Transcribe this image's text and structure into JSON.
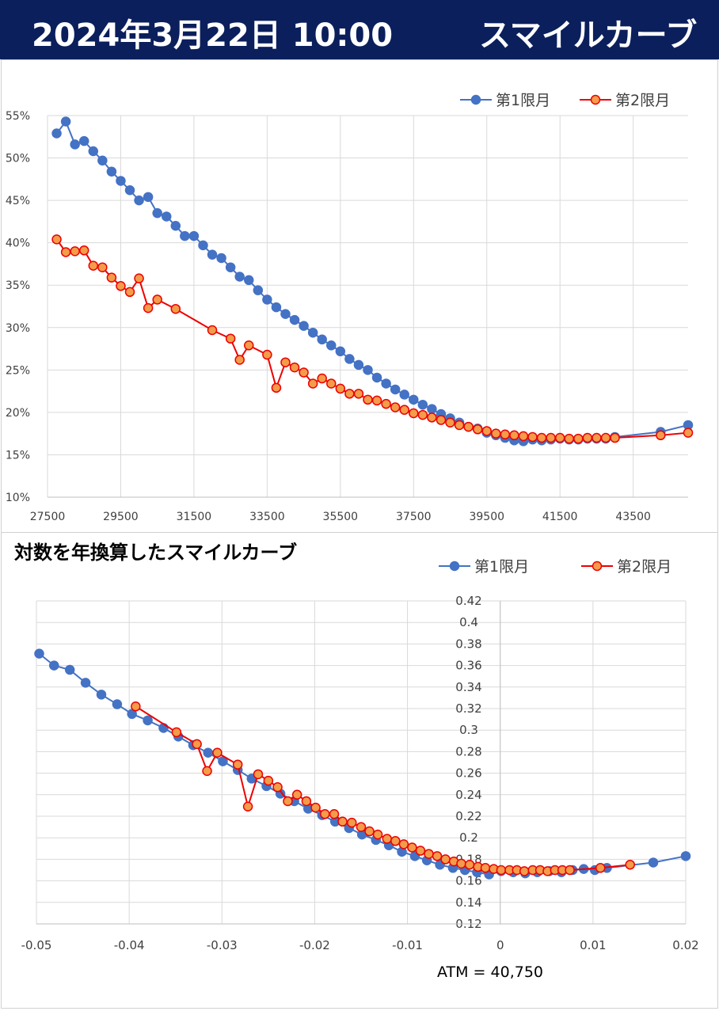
{
  "header": {
    "date": "2024年3月22日 10:00",
    "title": "スマイルカーブ"
  },
  "colors": {
    "header_bg": "#0b1f5c",
    "series1": "#4472c4",
    "series2": "#ee0000",
    "series2_fill": "#f39c4a"
  },
  "chart_data": [
    {
      "type": "line",
      "title": "",
      "xlabel": "",
      "ylabel": "",
      "xlim": [
        27500,
        45000
      ],
      "ylim": [
        10,
        55
      ],
      "x_ticks": [
        "27500",
        "29500",
        "31500",
        "33500",
        "35500",
        "37500",
        "39500",
        "41500",
        "43500"
      ],
      "y_ticks": [
        "10%",
        "15%",
        "20%",
        "25%",
        "30%",
        "35%",
        "40%",
        "45%",
        "50%",
        "55%"
      ],
      "legend": "top-right",
      "grid": true,
      "series": [
        {
          "name": "第1限月",
          "points": [
            [
              27750,
              52.9
            ],
            [
              28000,
              54.3
            ],
            [
              28250,
              51.6
            ],
            [
              28500,
              52.0
            ],
            [
              28750,
              50.8
            ],
            [
              29000,
              49.7
            ],
            [
              29250,
              48.4
            ],
            [
              29500,
              47.3
            ],
            [
              29750,
              46.2
            ],
            [
              30000,
              45.0
            ],
            [
              30250,
              45.4
            ],
            [
              30500,
              43.5
            ],
            [
              30750,
              43.1
            ],
            [
              31000,
              42.0
            ],
            [
              31250,
              40.8
            ],
            [
              31500,
              40.8
            ],
            [
              31750,
              39.7
            ],
            [
              32000,
              38.6
            ],
            [
              32250,
              38.2
            ],
            [
              32500,
              37.1
            ],
            [
              32750,
              36.0
            ],
            [
              33000,
              35.6
            ],
            [
              33250,
              34.4
            ],
            [
              33500,
              33.3
            ],
            [
              33750,
              32.4
            ],
            [
              34000,
              31.6
            ],
            [
              34250,
              30.9
            ],
            [
              34500,
              30.2
            ],
            [
              34750,
              29.4
            ],
            [
              35000,
              28.6
            ],
            [
              35250,
              27.9
            ],
            [
              35500,
              27.2
            ],
            [
              35750,
              26.3
            ],
            [
              36000,
              25.6
            ],
            [
              36250,
              25.0
            ],
            [
              36500,
              24.1
            ],
            [
              36750,
              23.4
            ],
            [
              37000,
              22.7
            ],
            [
              37250,
              22.1
            ],
            [
              37500,
              21.5
            ],
            [
              37750,
              20.9
            ],
            [
              38000,
              20.4
            ],
            [
              38250,
              19.8
            ],
            [
              38500,
              19.3
            ],
            [
              38750,
              18.8
            ],
            [
              39000,
              18.3
            ],
            [
              39250,
              18.1
            ],
            [
              39500,
              17.6
            ],
            [
              39750,
              17.3
            ],
            [
              40000,
              17.0
            ],
            [
              40250,
              16.7
            ],
            [
              40500,
              16.6
            ],
            [
              40750,
              16.8
            ],
            [
              41000,
              16.7
            ],
            [
              41250,
              16.8
            ],
            [
              41500,
              16.9
            ],
            [
              41750,
              16.8
            ],
            [
              42000,
              16.8
            ],
            [
              42250,
              16.9
            ],
            [
              42500,
              16.9
            ],
            [
              42750,
              16.9
            ],
            [
              43000,
              17.1
            ],
            [
              44250,
              17.7
            ],
            [
              45000,
              18.5
            ]
          ]
        },
        {
          "name": "第2限月",
          "points": [
            [
              27750,
              40.4
            ],
            [
              28000,
              38.9
            ],
            [
              28250,
              39.0
            ],
            [
              28500,
              39.1
            ],
            [
              28750,
              37.3
            ],
            [
              29000,
              37.1
            ],
            [
              29250,
              35.9
            ],
            [
              29500,
              34.9
            ],
            [
              29750,
              34.2
            ],
            [
              30000,
              35.8
            ],
            [
              30250,
              32.3
            ],
            [
              30500,
              33.3
            ],
            [
              31000,
              32.2
            ],
            [
              32000,
              29.7
            ],
            [
              32500,
              28.7
            ],
            [
              32750,
              26.2
            ],
            [
              33000,
              27.9
            ],
            [
              33500,
              26.8
            ],
            [
              33750,
              22.9
            ],
            [
              34000,
              25.9
            ],
            [
              34250,
              25.3
            ],
            [
              34500,
              24.7
            ],
            [
              34750,
              23.4
            ],
            [
              35000,
              24.0
            ],
            [
              35250,
              23.4
            ],
            [
              35500,
              22.8
            ],
            [
              35750,
              22.2
            ],
            [
              36000,
              22.2
            ],
            [
              36250,
              21.5
            ],
            [
              36500,
              21.4
            ],
            [
              36750,
              21.0
            ],
            [
              37000,
              20.6
            ],
            [
              37250,
              20.3
            ],
            [
              37500,
              19.9
            ],
            [
              37750,
              19.7
            ],
            [
              38000,
              19.4
            ],
            [
              38250,
              19.1
            ],
            [
              38500,
              18.8
            ],
            [
              38750,
              18.5
            ],
            [
              39000,
              18.3
            ],
            [
              39250,
              18.0
            ],
            [
              39500,
              17.8
            ],
            [
              39750,
              17.5
            ],
            [
              40000,
              17.4
            ],
            [
              40250,
              17.3
            ],
            [
              40500,
              17.2
            ],
            [
              40750,
              17.1
            ],
            [
              41000,
              17.0
            ],
            [
              41250,
              17.0
            ],
            [
              41500,
              17.0
            ],
            [
              41750,
              16.9
            ],
            [
              42000,
              16.9
            ],
            [
              42250,
              17.0
            ],
            [
              42500,
              17.0
            ],
            [
              42750,
              17.0
            ],
            [
              43000,
              17.0
            ],
            [
              44250,
              17.3
            ],
            [
              45000,
              17.6
            ]
          ]
        }
      ]
    },
    {
      "type": "scatter",
      "title": "対数を年換算したスマイルカーブ",
      "xlabel": "",
      "ylabel": "",
      "xlim": [
        -0.05,
        0.02
      ],
      "ylim": [
        0.12,
        0.42
      ],
      "x_ticks": [
        "-0.05",
        "-0.04",
        "-0.03",
        "-0.02",
        "-0.01",
        "0",
        "0.01",
        "0.02"
      ],
      "y_ticks": [
        "0.12",
        "0.14",
        "0.16",
        "0.18",
        "0.2",
        "0.22",
        "0.24",
        "0.26",
        "0.28",
        "0.3",
        "0.32",
        "0.34",
        "0.36",
        "0.38",
        "0.4",
        "0.42"
      ],
      "legend": "top-right",
      "grid": true,
      "annotation": "ATM = 40,750",
      "series": [
        {
          "name": "第1限月",
          "points": [
            [
              -0.0497,
              0.371
            ],
            [
              -0.0481,
              0.36
            ],
            [
              -0.0464,
              0.356
            ],
            [
              -0.0447,
              0.344
            ],
            [
              -0.043,
              0.333
            ],
            [
              -0.0413,
              0.324
            ],
            [
              -0.0397,
              0.315
            ],
            [
              -0.038,
              0.309
            ],
            [
              -0.0363,
              0.302
            ],
            [
              -0.0347,
              0.294
            ],
            [
              -0.0331,
              0.286
            ],
            [
              -0.0315,
              0.279
            ],
            [
              -0.0299,
              0.271
            ],
            [
              -0.0283,
              0.263
            ],
            [
              -0.0268,
              0.255
            ],
            [
              -0.0252,
              0.248
            ],
            [
              -0.0237,
              0.241
            ],
            [
              -0.0222,
              0.234
            ],
            [
              -0.0207,
              0.227
            ],
            [
              -0.0192,
              0.221
            ],
            [
              -0.0178,
              0.215
            ],
            [
              -0.0163,
              0.209
            ],
            [
              -0.0149,
              0.203
            ],
            [
              -0.0134,
              0.198
            ],
            [
              -0.012,
              0.193
            ],
            [
              -0.0106,
              0.187
            ],
            [
              -0.0092,
              0.183
            ],
            [
              -0.0079,
              0.179
            ],
            [
              -0.0065,
              0.175
            ],
            [
              -0.0051,
              0.172
            ],
            [
              -0.0038,
              0.17
            ],
            [
              -0.0025,
              0.168
            ],
            [
              -0.0012,
              0.166
            ],
            [
              0.0001,
              0.169
            ],
            [
              0.0014,
              0.168
            ],
            [
              0.0027,
              0.167
            ],
            [
              0.004,
              0.168
            ],
            [
              0.0053,
              0.169
            ],
            [
              0.0066,
              0.168
            ],
            [
              0.0078,
              0.17
            ],
            [
              0.009,
              0.171
            ],
            [
              0.0102,
              0.17
            ],
            [
              0.0115,
              0.172
            ],
            [
              0.0165,
              0.177
            ],
            [
              0.02,
              0.183
            ]
          ]
        },
        {
          "name": "第2限月",
          "points": [
            [
              -0.0393,
              0.322
            ],
            [
              -0.0349,
              0.298
            ],
            [
              -0.0327,
              0.287
            ],
            [
              -0.0316,
              0.262
            ],
            [
              -0.0305,
              0.279
            ],
            [
              -0.0283,
              0.268
            ],
            [
              -0.0272,
              0.229
            ],
            [
              -0.0261,
              0.259
            ],
            [
              -0.025,
              0.253
            ],
            [
              -0.024,
              0.247
            ],
            [
              -0.0229,
              0.234
            ],
            [
              -0.0219,
              0.24
            ],
            [
              -0.0209,
              0.234
            ],
            [
              -0.0199,
              0.228
            ],
            [
              -0.0189,
              0.222
            ],
            [
              -0.0179,
              0.222
            ],
            [
              -0.017,
              0.215
            ],
            [
              -0.016,
              0.214
            ],
            [
              -0.015,
              0.21
            ],
            [
              -0.0141,
              0.206
            ],
            [
              -0.0132,
              0.203
            ],
            [
              -0.0122,
              0.199
            ],
            [
              -0.0113,
              0.197
            ],
            [
              -0.0104,
              0.194
            ],
            [
              -0.0095,
              0.191
            ],
            [
              -0.0086,
              0.188
            ],
            [
              -0.0077,
              0.185
            ],
            [
              -0.0068,
              0.183
            ],
            [
              -0.0059,
              0.18
            ],
            [
              -0.005,
              0.178
            ],
            [
              -0.0042,
              0.176
            ],
            [
              -0.0033,
              0.175
            ],
            [
              -0.0024,
              0.173
            ],
            [
              -0.0016,
              0.172
            ],
            [
              -0.0007,
              0.171
            ],
            [
              0.0001,
              0.17
            ],
            [
              0.001,
              0.17
            ],
            [
              0.0018,
              0.17
            ],
            [
              0.0026,
              0.169
            ],
            [
              0.0035,
              0.17
            ],
            [
              0.0043,
              0.17
            ],
            [
              0.0051,
              0.169
            ],
            [
              0.0059,
              0.17
            ],
            [
              0.0067,
              0.17
            ],
            [
              0.0075,
              0.17
            ],
            [
              0.0108,
              0.172
            ],
            [
              0.014,
              0.175
            ]
          ]
        }
      ]
    }
  ]
}
